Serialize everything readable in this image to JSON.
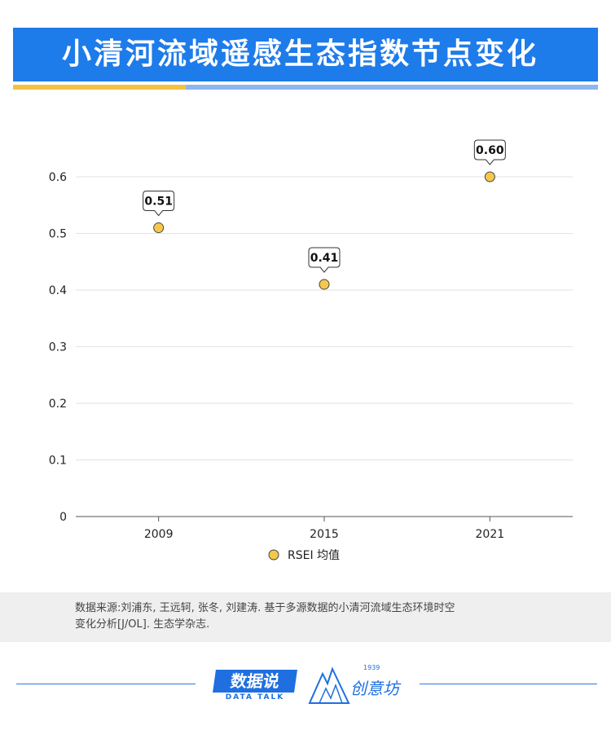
{
  "header": {
    "title": "小清河流域遥感生态指数节点变化"
  },
  "colors": {
    "title_bg": "#1e7bea",
    "marker": "#f5c84c",
    "accent_yellow": "#f4c242",
    "accent_blue": "#8cb5f2"
  },
  "chart_data": {
    "type": "scatter",
    "title": "小清河流域遥感生态指数节点变化",
    "categories": [
      "2009",
      "2015",
      "2021"
    ],
    "series": [
      {
        "name": "RSEI 均值",
        "values": [
          0.51,
          0.41,
          0.6
        ],
        "labels": [
          "0.51",
          "0.41",
          "0.60"
        ]
      }
    ],
    "ylim": [
      0,
      0.6
    ],
    "yticks": [
      "0",
      "0.1",
      "0.2",
      "0.3",
      "0.4",
      "0.5",
      "0.6"
    ],
    "grid": true,
    "legend": "bottom"
  },
  "source": {
    "line1": "数据来源:刘浦东, 王远轲, 张冬, 刘建涛. 基于多源数据的小清河流域生态环境时空",
    "line2": "变化分析[J/OL]. 生态学杂志."
  },
  "footer": {
    "logo_a_main": "数据说",
    "logo_a_sub": "DATA TALK",
    "logo_b_year": "1939",
    "logo_b_text": "创意坊"
  }
}
